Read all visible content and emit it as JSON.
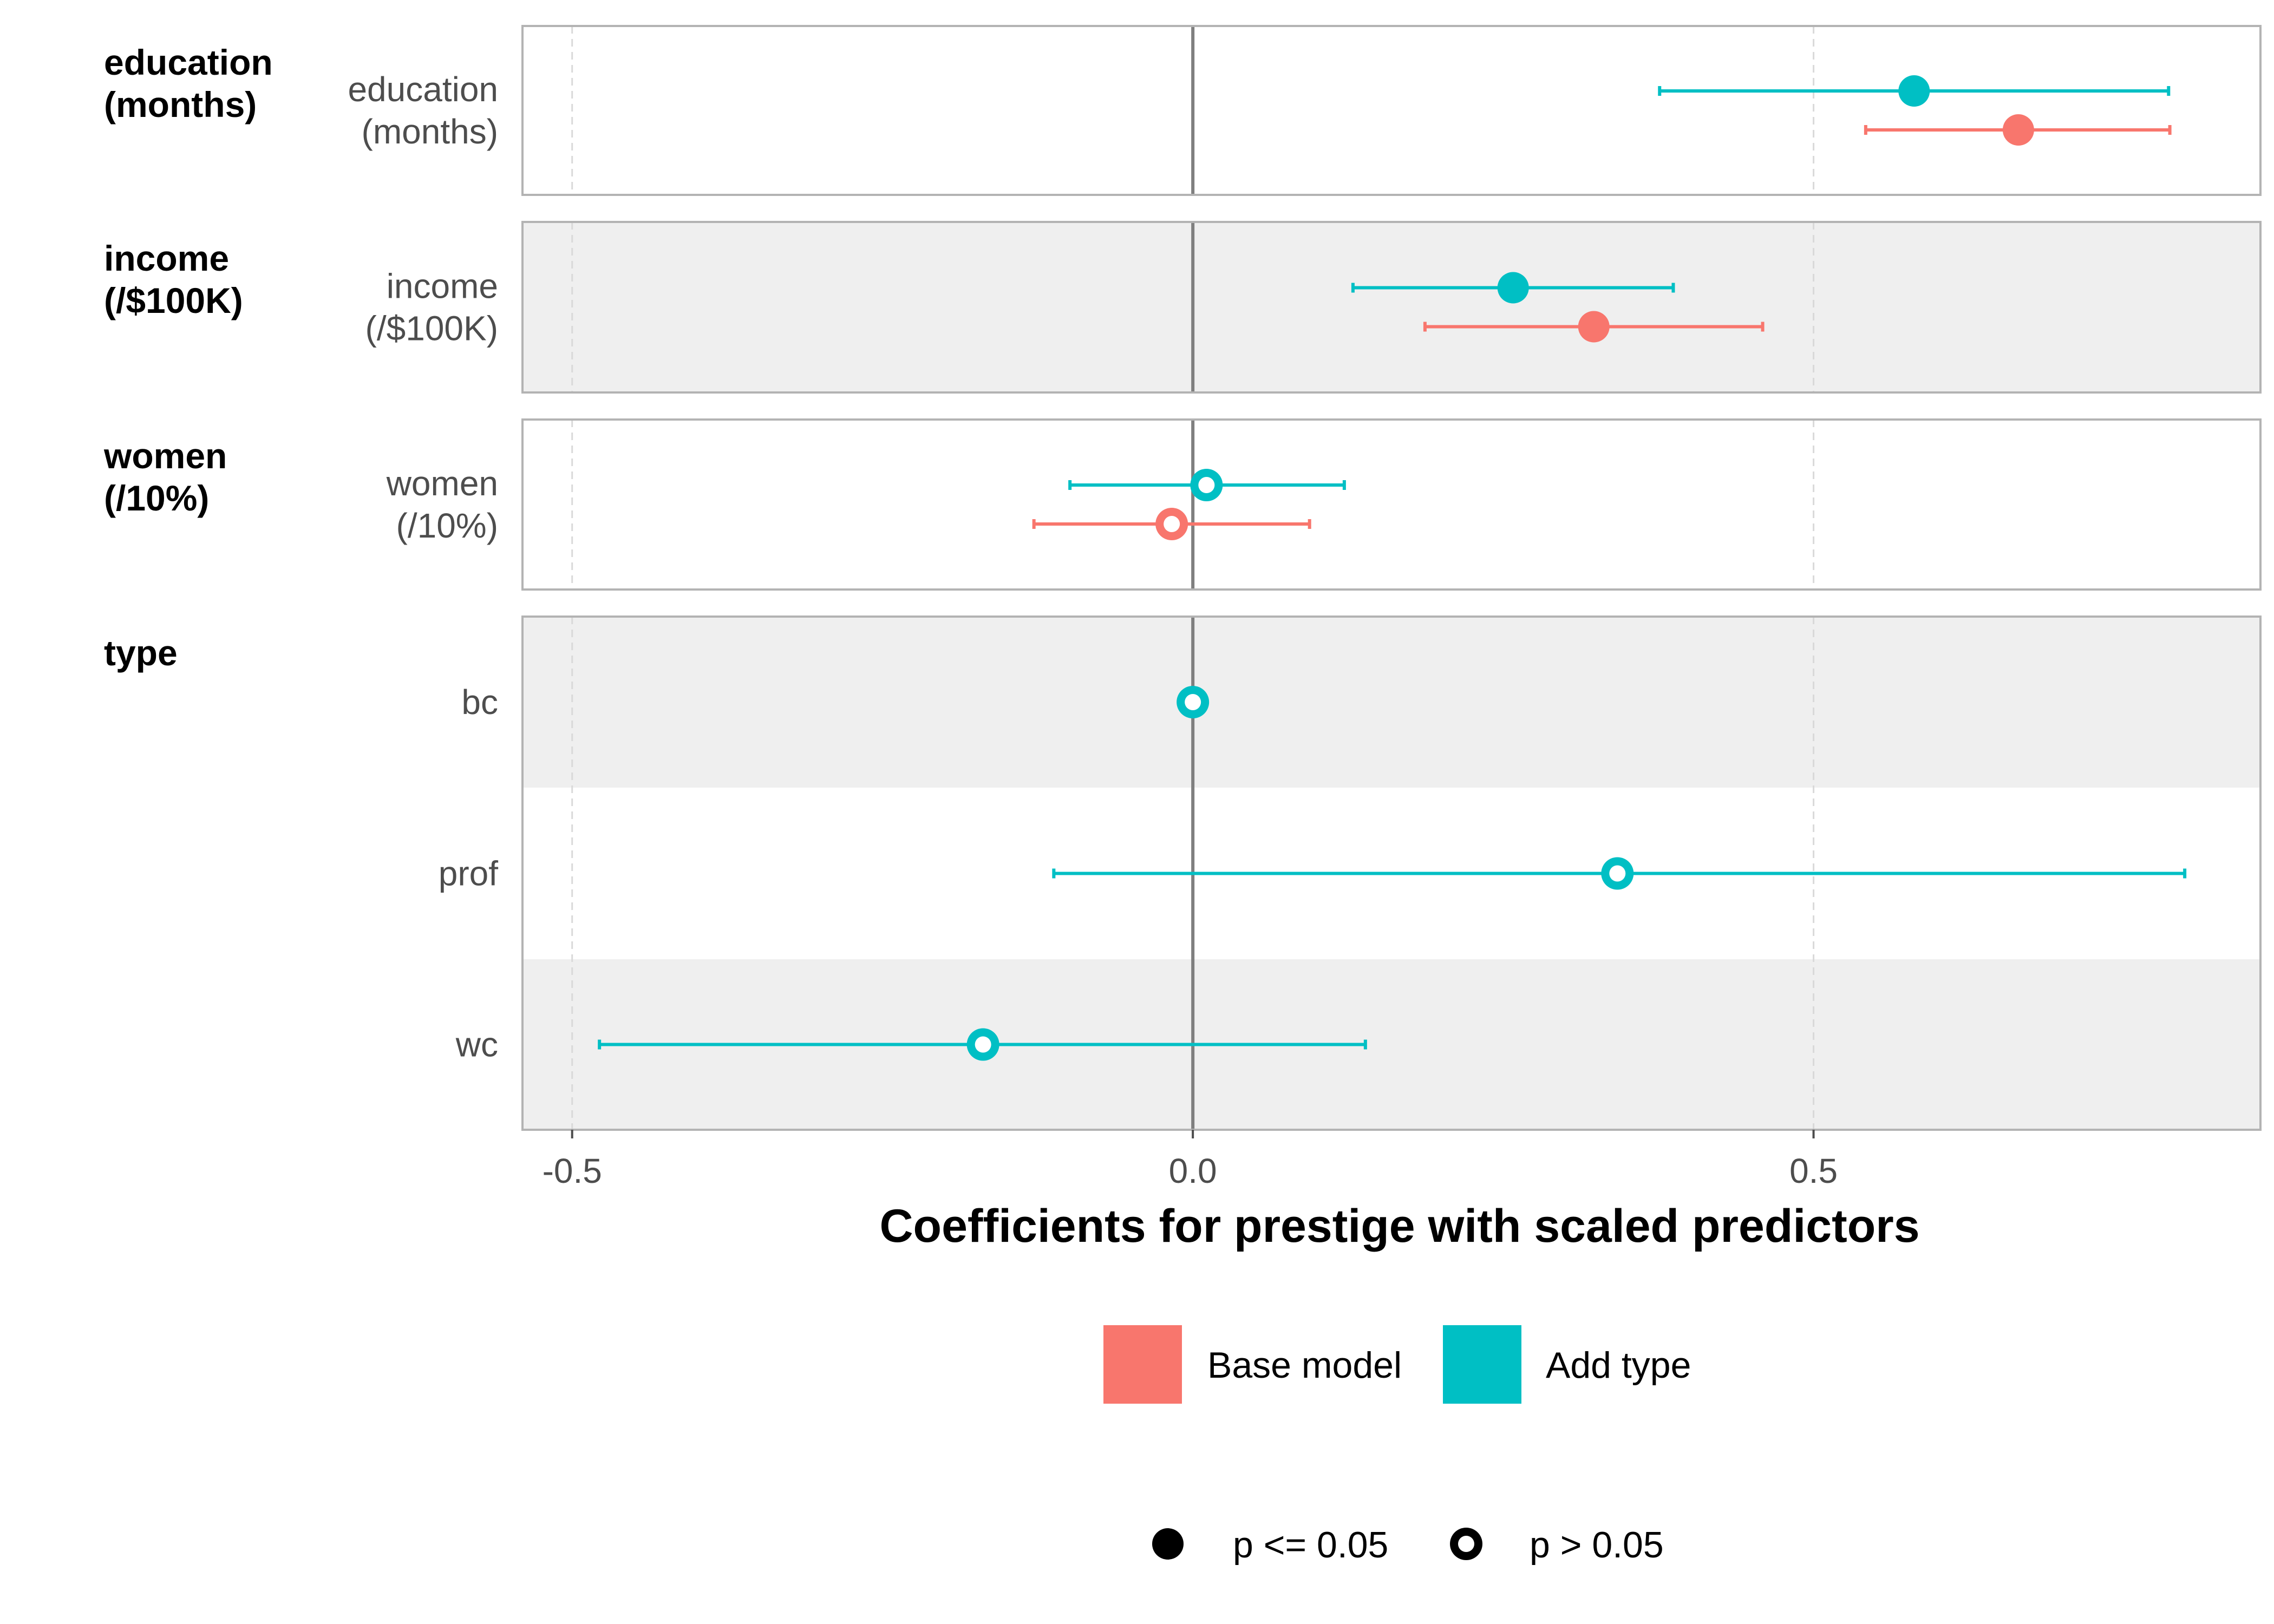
{
  "chart_data": {
    "type": "scatter",
    "title": "",
    "xlabel": "Coefficients for prestige with scaled predictors",
    "xlim": [
      -0.54,
      0.86
    ],
    "x_ticks": [
      -0.5,
      0.0,
      0.5
    ],
    "x_tick_labels": [
      "-0.5",
      "0.0",
      "0.5"
    ],
    "grid": true,
    "legend_placement": "bottom",
    "groups": [
      {
        "label_lines": [
          "education",
          "(months)"
        ],
        "terms": [
          {
            "label_lines": [
              "education",
              "(months)"
            ]
          }
        ]
      },
      {
        "label_lines": [
          "income",
          "(/$100K)"
        ],
        "terms": [
          {
            "label_lines": [
              "income",
              "(/$100K)"
            ]
          }
        ]
      },
      {
        "label_lines": [
          "women",
          "(/10%)"
        ],
        "terms": [
          {
            "label_lines": [
              "women",
              "(/10%)"
            ]
          }
        ]
      },
      {
        "label_lines": [
          "type"
        ],
        "terms": [
          {
            "label_lines": [
              "bc"
            ]
          },
          {
            "label_lines": [
              "prof"
            ]
          },
          {
            "label_lines": [
              "wc"
            ]
          }
        ]
      }
    ],
    "series": [
      {
        "name": "Base model",
        "color": "#F8766D",
        "points": [
          {
            "group": 0,
            "term": 0,
            "estimate": 0.665,
            "low": 0.542,
            "high": 0.787,
            "significant": true
          },
          {
            "group": 1,
            "term": 0,
            "estimate": 0.323,
            "low": 0.187,
            "high": 0.459,
            "significant": true
          },
          {
            "group": 2,
            "term": 0,
            "estimate": -0.017,
            "low": -0.128,
            "high": 0.094,
            "significant": false
          }
        ]
      },
      {
        "name": "Add type",
        "color": "#00BFC4",
        "points": [
          {
            "group": 0,
            "term": 0,
            "estimate": 0.581,
            "low": 0.376,
            "high": 0.786,
            "significant": true
          },
          {
            "group": 1,
            "term": 0,
            "estimate": 0.258,
            "low": 0.129,
            "high": 0.387,
            "significant": true
          },
          {
            "group": 2,
            "term": 0,
            "estimate": 0.011,
            "low": -0.099,
            "high": 0.122,
            "significant": false
          },
          {
            "group": 3,
            "term": 0,
            "estimate": 0.0,
            "low": 0.0,
            "high": 0.0,
            "significant": false
          },
          {
            "group": 3,
            "term": 1,
            "estimate": 0.342,
            "low": -0.112,
            "high": 0.799,
            "significant": false
          },
          {
            "group": 3,
            "term": 2,
            "estimate": -0.169,
            "low": -0.478,
            "high": 0.139,
            "significant": false
          }
        ]
      }
    ],
    "legend_color": [
      {
        "label": "Base model",
        "color": "#F8766D"
      },
      {
        "label": "Add type",
        "color": "#00BFC4"
      }
    ],
    "legend_shape": [
      {
        "label": "p <= 0.05",
        "filled": true
      },
      {
        "label": "p > 0.05",
        "filled": false
      }
    ]
  }
}
